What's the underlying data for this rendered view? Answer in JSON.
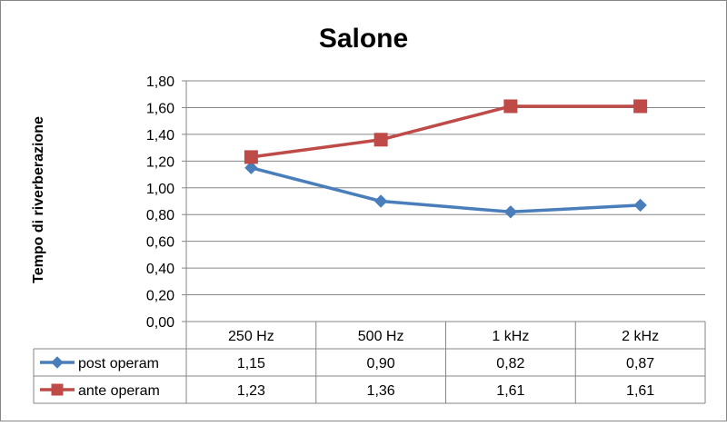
{
  "chart_data": {
    "type": "line",
    "title": "Salone",
    "ylabel": "Tempo di riverberazione",
    "xlabel": "",
    "ylim": [
      0,
      1.8
    ],
    "y_step": 0.2,
    "y_tick_labels": [
      "0,00",
      "0,20",
      "0,40",
      "0,60",
      "0,80",
      "1,00",
      "1,20",
      "1,40",
      "1,60",
      "1,80"
    ],
    "grid": true,
    "legend": "data-table",
    "categories": [
      "250 Hz",
      "500 Hz",
      "1 kHz",
      "2 kHz"
    ],
    "series": [
      {
        "name": "post operam",
        "values": [
          1.15,
          0.9,
          0.82,
          0.87
        ],
        "labels": [
          "1,15",
          "0,90",
          "0,82",
          "0,87"
        ],
        "color": "#4a7ebb",
        "marker": "diamond"
      },
      {
        "name": "ante operam",
        "values": [
          1.23,
          1.36,
          1.61,
          1.61
        ],
        "labels": [
          "1,23",
          "1,36",
          "1,61",
          "1,61"
        ],
        "color": "#be4b48",
        "marker": "square"
      }
    ]
  }
}
